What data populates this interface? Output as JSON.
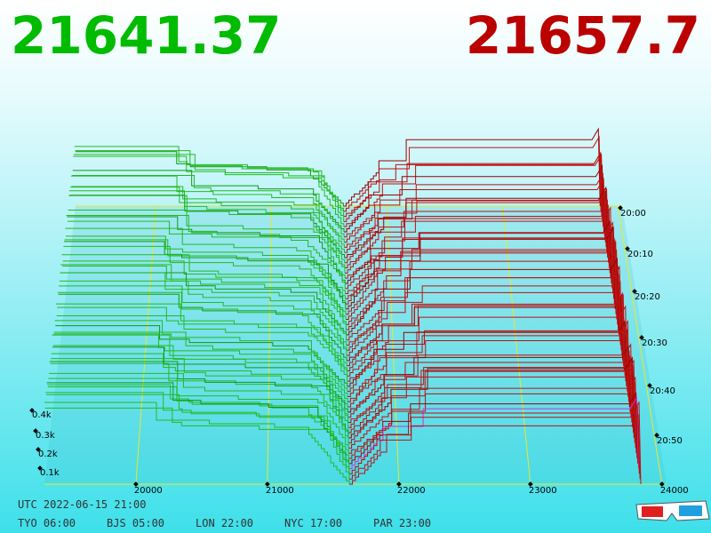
{
  "header": {
    "bid": "21641.37",
    "ask": "21657.7"
  },
  "axis": {
    "price_ticks": [
      "20000",
      "21000",
      "22000",
      "23000",
      "24000"
    ],
    "depth_ticks": [
      "0.1k",
      "0.2k",
      "0.3k",
      "0.4k"
    ],
    "time_ticks": [
      "20:00",
      "20:10",
      "20:20",
      "20:30",
      "20:40",
      "20:50"
    ]
  },
  "footer": {
    "utc": "UTC 2022-06-15 21:00",
    "cities": [
      "TYO 06:00",
      "BJS 05:00",
      "LON 22:00",
      "NYC 17:00",
      "PAR 23:00"
    ]
  }
}
